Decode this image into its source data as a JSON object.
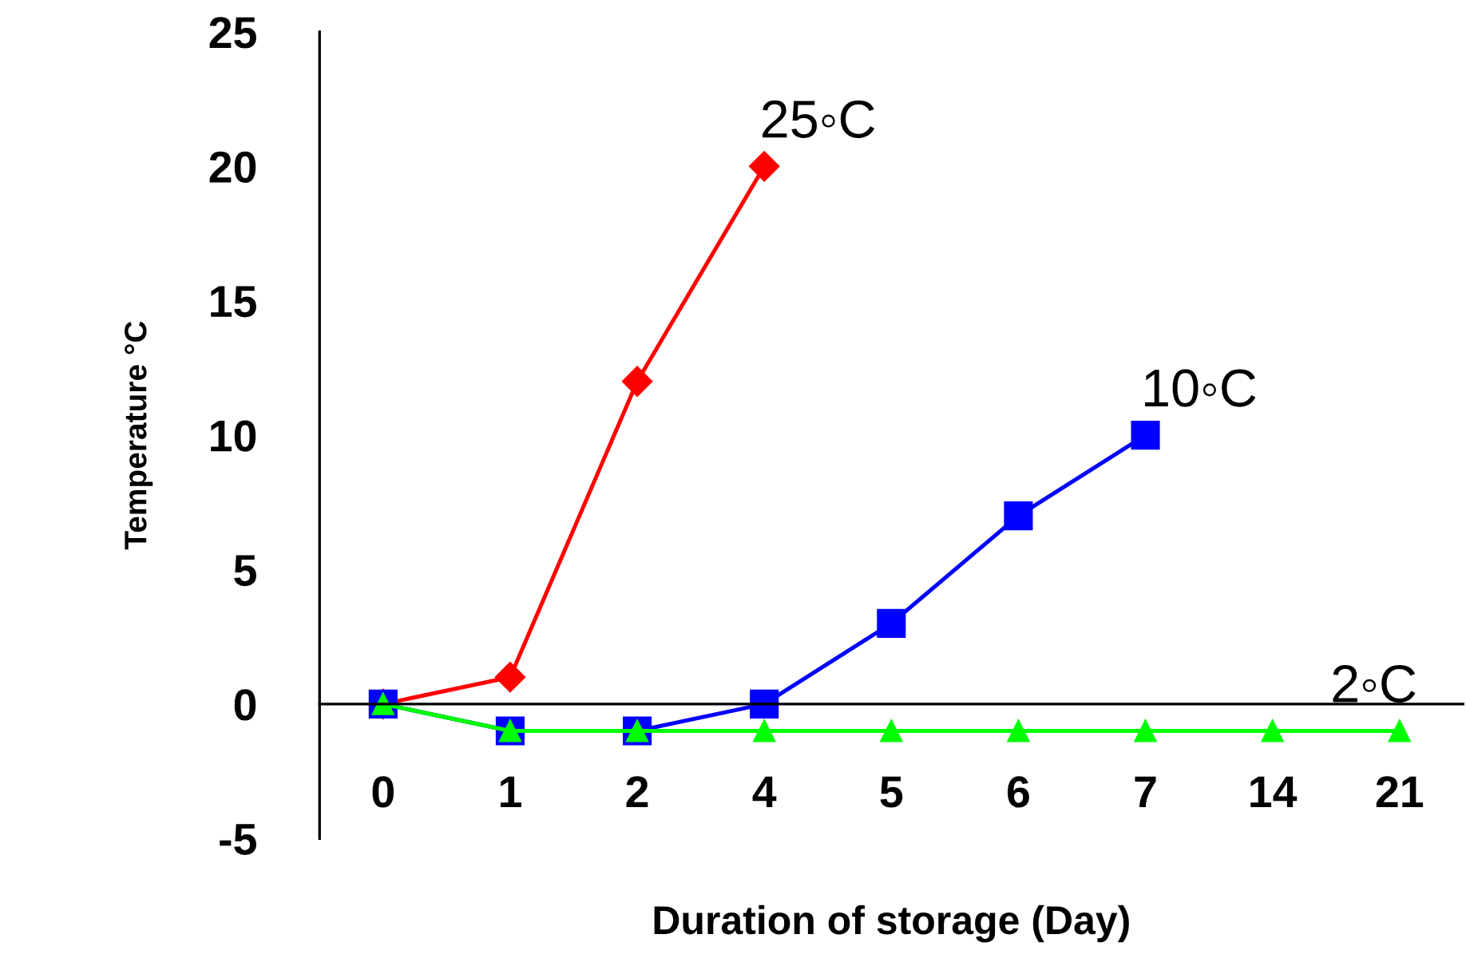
{
  "chart_data": {
    "type": "line",
    "xlabel": "Duration of storage (Day)",
    "ylabel": "Temperature °C",
    "categories": [
      "0",
      "1",
      "2",
      "4",
      "5",
      "6",
      "7",
      "14",
      "21"
    ],
    "ylim": [
      -5,
      25
    ],
    "yticks": [
      -5,
      0,
      5,
      10,
      15,
      20,
      25
    ],
    "grid": false,
    "legend": false,
    "series": [
      {
        "name": "25◦C",
        "color": "#ff0000",
        "marker": "diamond",
        "values": [
          0,
          1,
          12,
          20,
          null,
          null,
          null,
          null,
          null
        ]
      },
      {
        "name": "10◦C",
        "color": "#0000ff",
        "marker": "square",
        "values": [
          0,
          -1,
          -1,
          0,
          3,
          7,
          10,
          null,
          null
        ]
      },
      {
        "name": "2◦C",
        "color": "#00ff00",
        "marker": "triangle",
        "values": [
          0,
          -1,
          -1,
          -1,
          -1,
          -1,
          -1,
          -1,
          -1
        ]
      }
    ]
  }
}
